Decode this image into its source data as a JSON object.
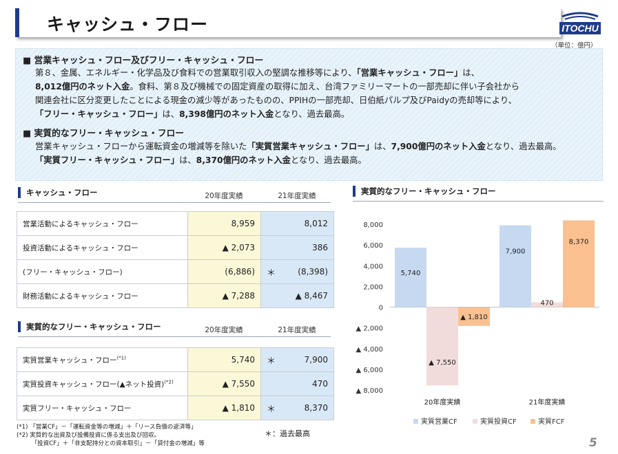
{
  "header": {
    "title": "キャッシュ・フロー",
    "logo_text": "ITOCHU",
    "unit": "（単位：億円）"
  },
  "summary": {
    "h1": "■ 営業キャッシュ・フロー及びフリー・キャッシュ・フロー",
    "p1": [
      [
        "第８、金属、エネルギー・化学品及び食料での営業取引収入の堅調な推移等により、",
        "「営業キャッシュ・フロー」",
        "は、"
      ],
      [
        "8,012億円のネット入金",
        "。食料、第８及び機械での固定資産の取得に加え、台湾ファミリーマートの一部売却に伴い子会社から"
      ],
      [
        "関連会社に区分変更したことによる現金の減少等があったものの、PPIHの一部売却、日伯紙パルプ及びPaidyの売却等により、"
      ],
      [
        "「フリー・キャッシュ・フロー」",
        "は、",
        "8,398億円のネット入金",
        "となり、過去最高。"
      ]
    ],
    "h2": "■ 実質的なフリー・キャッシュ・フロー",
    "p2": [
      [
        "営業キャッシュ・フローから運転資金の増減等を除いた",
        "「実質営業キャッシュ・フロー」",
        "は、",
        "7,900億円のネット入金",
        "となり、過去最高。"
      ],
      [
        "「実質フリー・キャッシュ・フロー」",
        "は、",
        "8,370億円のネット入金",
        "となり、過去最高。"
      ]
    ]
  },
  "table1": {
    "title": "キャッシュ・フロー",
    "col20": "20年度実績",
    "col21": "21年度実績",
    "rows": [
      {
        "label": "営業活動によるキャッシュ・フロー",
        "v20": "8,959",
        "v21": "8,012",
        "star": ""
      },
      {
        "label": "投資活動によるキャッシュ・フロー",
        "v20": "▲ 2,073",
        "v21": "386",
        "star": ""
      },
      {
        "label": "(フリー・キャッシュ・フロー)",
        "v20": "(6,886)",
        "v21": "(8,398)",
        "star": "＊"
      },
      {
        "label": "財務活動によるキャッシュ・フロー",
        "v20": "▲ 7,288",
        "v21": "▲ 8,467",
        "star": ""
      }
    ]
  },
  "table2": {
    "title": "実質的なフリー・キャッシュ・フロー",
    "col20": "20年度実績",
    "col21": "21年度実績",
    "rows": [
      {
        "label": "実質営業キャッシュ・フロー",
        "sup": "(*1)",
        "v20": "5,740",
        "v21": "7,900",
        "star": "＊"
      },
      {
        "label": "実質投資キャッシュ・フロー(▲ネット投資)",
        "sup": "(*2)",
        "v20": "▲ 7,550",
        "v21": "470",
        "star": ""
      },
      {
        "label": "実質フリー・キャッシュ・フロー",
        "sup": "",
        "v20": "▲ 1,810",
        "v21": "8,370",
        "star": "＊"
      }
    ]
  },
  "notes": [
    "(*1) 「営業CF」－「運転資金等の増減」＋「リース負債の返済等」",
    "(*2) 実質的な出資及び設備投資に係る支出及び回収。",
    "　　　「投資CF」＋「非支配持分との資本取引」－「貸付金の増減」等"
  ],
  "star_legend": "＊：過去最高",
  "page_number": "5",
  "chart_data": {
    "type": "bar",
    "title": "実質的なフリー・キャッシュ・フロー",
    "categories": [
      "20年度実績",
      "21年度実績"
    ],
    "series": [
      {
        "name": "実質営業CF",
        "values": [
          5740,
          7900
        ],
        "labels": [
          "5,740",
          "7,900"
        ],
        "color": "#c6d9f0"
      },
      {
        "name": "実質投資CF",
        "values": [
          -7550,
          470
        ],
        "labels": [
          "▲ 7,550",
          "470"
        ],
        "color": "#f2dcdb"
      },
      {
        "name": "実質FCF",
        "values": [
          -1810,
          8370
        ],
        "labels": [
          "▲ 1,810",
          "8,370"
        ],
        "color": "#fac090"
      }
    ],
    "ylim": [
      -8000,
      8000
    ],
    "yticks": [
      {
        "v": 8000,
        "t": "8,000"
      },
      {
        "v": 6000,
        "t": "6,000"
      },
      {
        "v": 4000,
        "t": "4,000"
      },
      {
        "v": 2000,
        "t": "2,000"
      },
      {
        "v": 0,
        "t": "0"
      },
      {
        "v": -2000,
        "t": "▲ 2,000"
      },
      {
        "v": -4000,
        "t": "▲ 4,000"
      },
      {
        "v": -6000,
        "t": "▲ 6,000"
      },
      {
        "v": -8000,
        "t": "▲ 8,000"
      }
    ],
    "legend_position": "bottom"
  }
}
